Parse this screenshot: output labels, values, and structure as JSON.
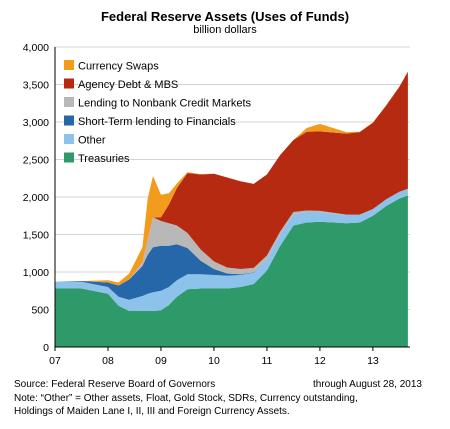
{
  "chart_data": {
    "type": "area",
    "title": "Federal Reserve Assets (Uses of Funds)",
    "subtitle": "billion dollars",
    "xlabel": "",
    "ylabel": "",
    "ylim": [
      0,
      4000
    ],
    "yticks": [
      "0",
      "500",
      "1,000",
      "1,500",
      "2,000",
      "2,500",
      "3,000",
      "3,500",
      "4,000"
    ],
    "xticks": [
      "07",
      "08",
      "09",
      "10",
      "11",
      "12",
      "13"
    ],
    "x": [
      2007.0,
      2007.5,
      2008.0,
      2008.2,
      2008.4,
      2008.65,
      2008.75,
      2008.85,
      2009.0,
      2009.15,
      2009.3,
      2009.5,
      2009.75,
      2010.0,
      2010.25,
      2010.5,
      2010.75,
      2011.0,
      2011.25,
      2011.5,
      2011.75,
      2012.0,
      2012.25,
      2012.5,
      2012.75,
      2013.0,
      2013.25,
      2013.5,
      2013.66
    ],
    "grid": true,
    "legend_position": "top-left",
    "series": [
      {
        "name": "Treasuries",
        "color": "#2e9a6a",
        "values": [
          780,
          780,
          710,
          550,
          480,
          480,
          480,
          480,
          490,
          560,
          670,
          770,
          780,
          780,
          780,
          800,
          840,
          1020,
          1350,
          1620,
          1660,
          1670,
          1660,
          1650,
          1660,
          1750,
          1880,
          1980,
          2020
        ]
      },
      {
        "name": "Other",
        "color": "#8dc3ea",
        "values": [
          90,
          90,
          90,
          120,
          150,
          200,
          230,
          250,
          260,
          240,
          220,
          200,
          190,
          180,
          170,
          160,
          150,
          150,
          150,
          150,
          140,
          130,
          120,
          110,
          100,
          90,
          90,
          90,
          90
        ]
      },
      {
        "name": "Short-Term lending to Financials",
        "color": "#2567a8",
        "values": [
          0,
          10,
          60,
          150,
          270,
          400,
          520,
          600,
          600,
          550,
          480,
          350,
          180,
          80,
          30,
          10,
          5,
          0,
          0,
          0,
          0,
          0,
          0,
          0,
          0,
          0,
          0,
          0,
          0
        ]
      },
      {
        "name": "Lending to Nonbank Credit Markets",
        "color": "#b8b8b8",
        "values": [
          0,
          0,
          0,
          0,
          0,
          50,
          200,
          400,
          330,
          300,
          250,
          200,
          150,
          100,
          80,
          70,
          60,
          50,
          40,
          30,
          20,
          15,
          10,
          5,
          5,
          0,
          0,
          0,
          0
        ]
      },
      {
        "name": "Agency Debt & MBS",
        "color": "#b52a10",
        "values": [
          0,
          0,
          0,
          0,
          0,
          0,
          0,
          0,
          50,
          250,
          500,
          800,
          1000,
          1170,
          1200,
          1170,
          1120,
          1080,
          1020,
          960,
          1050,
          1060,
          1070,
          1080,
          1100,
          1150,
          1250,
          1400,
          1560
        ]
      },
      {
        "name": "Currency Swaps",
        "color": "#f39b1d",
        "values": [
          0,
          0,
          30,
          40,
          80,
          200,
          550,
          550,
          300,
          150,
          60,
          10,
          5,
          0,
          0,
          0,
          0,
          0,
          0,
          0,
          50,
          100,
          60,
          20,
          5,
          5,
          5,
          5,
          5
        ]
      }
    ],
    "stack_order": [
      "Treasuries",
      "Other",
      "Short-Term lending to Financials",
      "Lending to Nonbank Credit Markets",
      "Agency Debt & MBS",
      "Currency Swaps"
    ],
    "legend_order": [
      "Currency Swaps",
      "Agency Debt & MBS",
      "Lending to Nonbank Credit Markets",
      "Short-Term lending to Financials",
      "Other",
      "Treasuries"
    ]
  },
  "footer": {
    "source": "Source: Federal Reserve Board of Governors",
    "date": "through August 28, 2013",
    "note1": "Note: “Other” = Other assets, Float, Gold Stock, SDRs, Currency outstanding,",
    "note2": "Holdings of Maiden Lane I, II, III and Foreign Currency Assets."
  }
}
